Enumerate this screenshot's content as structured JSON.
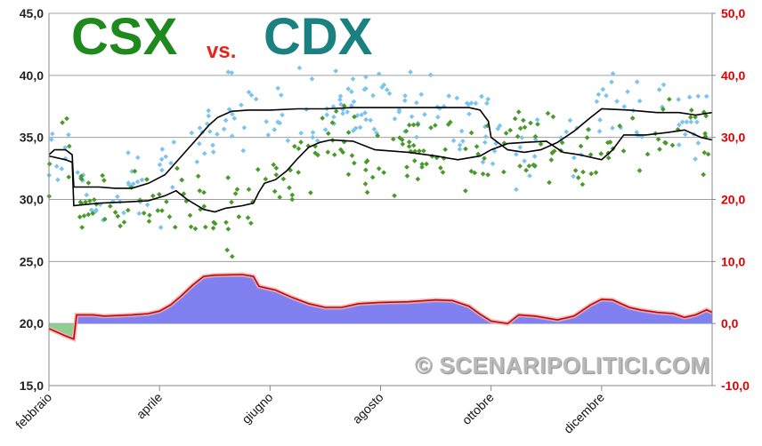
{
  "title": {
    "left": "CSX",
    "mid": "vs.",
    "right": "CDX",
    "left_color": "#1e8a1e",
    "mid_color": "#e8231d",
    "right_color": "#1a8080"
  },
  "watermark": "© SCENARIPOLITICI.COM",
  "chart_data": {
    "type": "line",
    "x_domain": [
      0,
      12
    ],
    "xticks": [
      {
        "x": 0,
        "label": "febbraio"
      },
      {
        "x": 2,
        "label": "aprile"
      },
      {
        "x": 4,
        "label": "giugno"
      },
      {
        "x": 6,
        "label": "agosto"
      },
      {
        "x": 8,
        "label": "ottobre"
      },
      {
        "x": 10,
        "label": "dicembre"
      }
    ],
    "y_left": {
      "min": 15,
      "max": 45,
      "ticks": [
        "15,0",
        "20,0",
        "25,0",
        "30,0",
        "35,0",
        "40,0",
        "45,0"
      ]
    },
    "y_right": {
      "min": -10,
      "max": 50,
      "ticks": [
        "-10,0",
        "0,0",
        "10,0",
        "20,0",
        "30,0",
        "40,0",
        "50,0"
      ],
      "color": "#e00000"
    },
    "grid": true,
    "series": [
      {
        "key": "csx_trend",
        "axis": "left",
        "color": "#000000",
        "points": [
          [
            0,
            33.6
          ],
          [
            0.1,
            34.0
          ],
          [
            0.3,
            34.0
          ],
          [
            0.42,
            33.6
          ],
          [
            0.45,
            31.0
          ],
          [
            0.9,
            31.0
          ],
          [
            1.2,
            30.9
          ],
          [
            1.5,
            30.9
          ],
          [
            1.8,
            31.3
          ],
          [
            2.1,
            32.0
          ],
          [
            2.3,
            33.0
          ],
          [
            2.5,
            34.0
          ],
          [
            2.7,
            35.0
          ],
          [
            2.9,
            36.0
          ],
          [
            3.05,
            36.6
          ],
          [
            3.3,
            37.1
          ],
          [
            3.6,
            37.2
          ],
          [
            4.0,
            37.2
          ],
          [
            4.5,
            37.3
          ],
          [
            5.0,
            37.3
          ],
          [
            5.5,
            37.4
          ],
          [
            6.0,
            37.4
          ],
          [
            6.7,
            37.4
          ],
          [
            7.2,
            37.4
          ],
          [
            7.6,
            37.4
          ],
          [
            7.8,
            37.2
          ],
          [
            7.95,
            36.3
          ],
          [
            8.0,
            35.0
          ],
          [
            8.15,
            34.5
          ],
          [
            8.3,
            34.0
          ],
          [
            8.6,
            33.8
          ],
          [
            8.9,
            34.0
          ],
          [
            9.2,
            34.6
          ],
          [
            9.5,
            35.5
          ],
          [
            9.8,
            36.6
          ],
          [
            10.0,
            37.3
          ],
          [
            10.5,
            37.2
          ],
          [
            11.0,
            37.0
          ],
          [
            11.4,
            37.0
          ],
          [
            11.7,
            36.8
          ],
          [
            12,
            37.0
          ]
        ]
      },
      {
        "key": "cdx_trend",
        "axis": "left",
        "color": "#000000",
        "points": [
          [
            0,
            33.5
          ],
          [
            0.3,
            33.2
          ],
          [
            0.42,
            33.0
          ],
          [
            0.45,
            29.5
          ],
          [
            0.9,
            29.7
          ],
          [
            1.4,
            29.8
          ],
          [
            1.8,
            29.9
          ],
          [
            2.1,
            30.3
          ],
          [
            2.3,
            30.7
          ],
          [
            2.5,
            30.0
          ],
          [
            2.8,
            29.2
          ],
          [
            3.0,
            29.0
          ],
          [
            3.2,
            29.3
          ],
          [
            3.5,
            29.5
          ],
          [
            3.7,
            29.7
          ],
          [
            3.8,
            30.6
          ],
          [
            3.9,
            31.3
          ],
          [
            4.1,
            31.6
          ],
          [
            4.3,
            32.3
          ],
          [
            4.5,
            33.3
          ],
          [
            4.7,
            34.2
          ],
          [
            4.9,
            34.6
          ],
          [
            5.1,
            34.8
          ],
          [
            5.5,
            34.7
          ],
          [
            5.9,
            34.0
          ],
          [
            6.5,
            33.8
          ],
          [
            7.0,
            33.5
          ],
          [
            7.4,
            33.2
          ],
          [
            7.8,
            33.5
          ],
          [
            8.0,
            34.0
          ],
          [
            8.3,
            34.5
          ],
          [
            8.6,
            34.6
          ],
          [
            9.0,
            34.7
          ],
          [
            9.3,
            33.8
          ],
          [
            9.6,
            33.6
          ],
          [
            9.8,
            33.4
          ],
          [
            10.0,
            33.2
          ],
          [
            10.2,
            34.0
          ],
          [
            10.4,
            35.2
          ],
          [
            10.8,
            35.2
          ],
          [
            11.2,
            35.4
          ],
          [
            11.5,
            35.6
          ],
          [
            11.8,
            35.0
          ],
          [
            12,
            34.8
          ]
        ]
      },
      {
        "key": "difference",
        "axis": "right",
        "type": "area",
        "color": "#cc0000",
        "fill_positive": "#8080f0",
        "fill_negative": "#8fce8f",
        "points": [
          [
            0,
            -0.8
          ],
          [
            0.3,
            -2.0
          ],
          [
            0.45,
            -2.5
          ],
          [
            0.5,
            1.4
          ],
          [
            0.8,
            1.4
          ],
          [
            1.0,
            1.2
          ],
          [
            1.5,
            1.4
          ],
          [
            1.8,
            1.6
          ],
          [
            2.0,
            2.0
          ],
          [
            2.2,
            3.0
          ],
          [
            2.4,
            4.5
          ],
          [
            2.6,
            6.2
          ],
          [
            2.8,
            7.6
          ],
          [
            3.0,
            7.8
          ],
          [
            3.5,
            7.9
          ],
          [
            3.7,
            7.6
          ],
          [
            3.8,
            6.0
          ],
          [
            4.1,
            5.4
          ],
          [
            4.4,
            4.2
          ],
          [
            4.7,
            3.2
          ],
          [
            5.0,
            2.6
          ],
          [
            5.3,
            2.6
          ],
          [
            5.6,
            3.2
          ],
          [
            6.0,
            3.4
          ],
          [
            6.5,
            3.5
          ],
          [
            7.0,
            3.8
          ],
          [
            7.3,
            3.7
          ],
          [
            7.6,
            2.8
          ],
          [
            7.8,
            1.5
          ],
          [
            8.0,
            0.4
          ],
          [
            8.3,
            0.0
          ],
          [
            8.5,
            1.4
          ],
          [
            8.8,
            1.2
          ],
          [
            9.2,
            0.6
          ],
          [
            9.5,
            1.2
          ],
          [
            9.8,
            3.0
          ],
          [
            10.0,
            3.9
          ],
          [
            10.2,
            3.8
          ],
          [
            10.5,
            2.6
          ],
          [
            10.7,
            2.2
          ],
          [
            11.0,
            1.8
          ],
          [
            11.3,
            1.6
          ],
          [
            11.5,
            1.0
          ],
          [
            11.7,
            1.4
          ],
          [
            11.9,
            2.2
          ],
          [
            12.0,
            1.8
          ]
        ]
      },
      {
        "key": "csx_polls",
        "axis": "left",
        "type": "scatter",
        "color": "#7ac4ef",
        "center": "csx_trend",
        "jitter": 1.5,
        "count": 220,
        "seed": 7
      },
      {
        "key": "cdx_polls",
        "axis": "left",
        "type": "scatter",
        "color": "#4a9a2a",
        "center": "cdx_trend",
        "jitter": 1.6,
        "count": 230,
        "seed": 19
      }
    ]
  }
}
